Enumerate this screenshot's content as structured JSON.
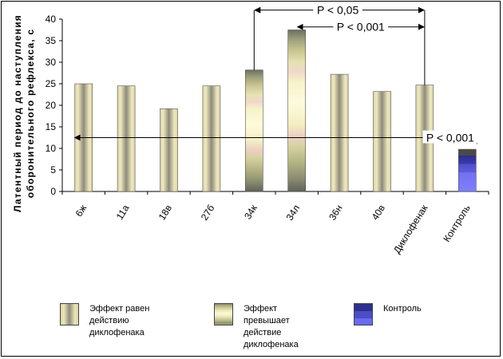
{
  "chart_data": {
    "type": "bar",
    "ylabel": "Латентный период до наступления оборонительного рефлекса, с",
    "ylim": [
      0,
      40
    ],
    "yticks": [
      0,
      5,
      10,
      15,
      20,
      25,
      30,
      35,
      40
    ],
    "categories": [
      "6ж",
      "11а",
      "18в",
      "27б",
      "34к",
      "34л",
      "36н",
      "40в",
      "Диклофенак",
      "Контроль"
    ],
    "values": [
      25.0,
      24.5,
      19.2,
      24.5,
      28.2,
      37.5,
      27.2,
      23.2,
      24.7,
      9.8
    ],
    "styles": [
      "equal",
      "equal",
      "equal",
      "equal",
      "exceed",
      "exceed",
      "equal",
      "equal",
      "equal",
      "control"
    ],
    "annotations": [
      {
        "text": "P < 0,05",
        "from": "34к",
        "to": "Диклофенак",
        "level": 42.1
      },
      {
        "text": "P < 0,001",
        "from": "34л",
        "to": "Диклофенак",
        "level": 38.2
      },
      {
        "text": "P < 0,001",
        "from": "6ж",
        "to": "Контроль",
        "level": 12.5
      }
    ],
    "legend": [
      {
        "key": "equal",
        "label": "Эффект равен\nдействию\nдиклофенака"
      },
      {
        "key": "exceed",
        "label": "Эффект\nпревышает\nдействие\nдиклофенака"
      },
      {
        "key": "control",
        "label": "Контроль"
      }
    ]
  }
}
